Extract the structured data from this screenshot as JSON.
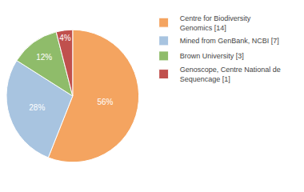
{
  "chart_data": {
    "type": "pie",
    "categories": [
      "Centre for Biodiversity\nGenomics [14]",
      "Mined from GenBank, NCBI [7]",
      "Brown University [3]",
      "Genoscope, Centre National de\nSequencage [1]"
    ],
    "values": [
      56,
      28,
      12,
      4
    ],
    "value_labels": [
      "56%",
      "28%",
      "12%",
      "4%"
    ],
    "colors": [
      "#F4A460",
      "#A8C4E0",
      "#8FBC6A",
      "#C0504D"
    ],
    "data_labels": true,
    "legend": "right"
  }
}
